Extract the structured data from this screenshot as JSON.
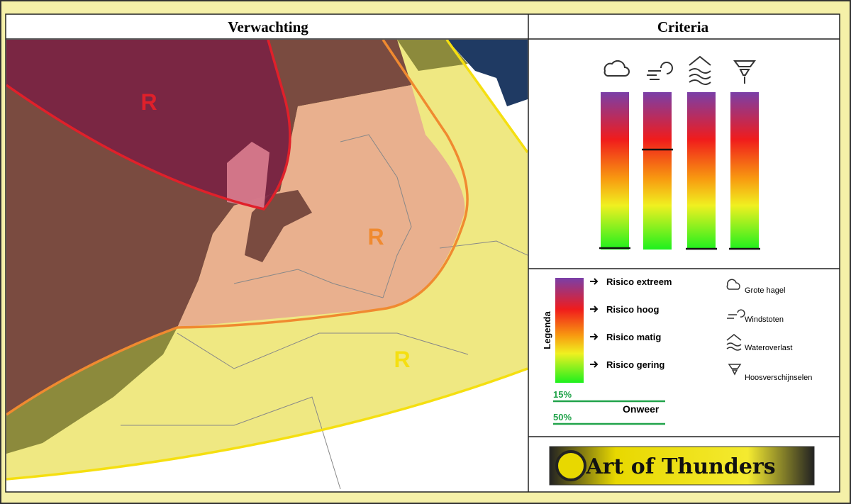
{
  "header": {
    "forecast_title": "Verwachting",
    "criteria_title": "Criteria"
  },
  "map": {
    "risk_labels": [
      "R",
      "R",
      "R"
    ]
  },
  "legend": {
    "title": "Legenda",
    "levels": [
      "Risico extreem",
      "Risico hoog",
      "Risico matig",
      "Risico gering"
    ],
    "phenomena": [
      "Grote hagel",
      "Windstoten",
      "Wateroverlast",
      "Hoosverschijnselen"
    ],
    "thunder": {
      "probabilities": [
        "15%",
        "50%"
      ],
      "label": "Onweer"
    }
  },
  "logo": {
    "text": "Art of Thunders"
  }
}
